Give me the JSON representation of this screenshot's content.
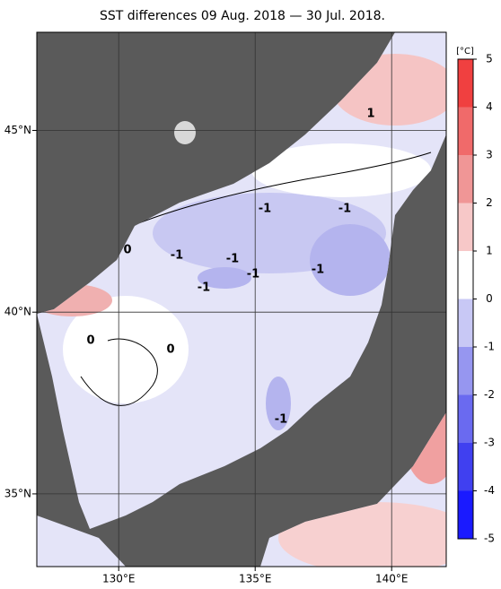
{
  "title": "SST differences 09 Aug. 2018 — 30 Jul. 2018.",
  "map": {
    "xlim": [
      127,
      142
    ],
    "ylim": [
      33,
      47.7
    ],
    "lon_ticks": [
      {
        "value": 130,
        "label": "130°E"
      },
      {
        "value": 135,
        "label": "135°E"
      },
      {
        "value": 140,
        "label": "140°E"
      }
    ],
    "lat_ticks": [
      {
        "value": 35,
        "label": "35°N"
      },
      {
        "value": 40,
        "label": "40°N"
      },
      {
        "value": 45,
        "label": "45°N"
      }
    ],
    "contour_labels": [
      "1",
      "-1",
      "-1",
      "-1",
      "-1",
      "-1",
      "-1",
      "-1",
      "-1",
      "0",
      "0",
      "0"
    ]
  },
  "colorbar": {
    "unit": "[°C]",
    "ticks": [
      -5,
      -4,
      -3,
      -2,
      -1,
      0,
      1,
      2,
      3,
      4,
      5
    ],
    "colors": [
      "#1a1aff",
      "#4040f0",
      "#6a6af0",
      "#9696f0",
      "#c8c8f5",
      "#ffffff",
      "#f7c8c8",
      "#f09696",
      "#f06a6a",
      "#f04040"
    ]
  }
}
